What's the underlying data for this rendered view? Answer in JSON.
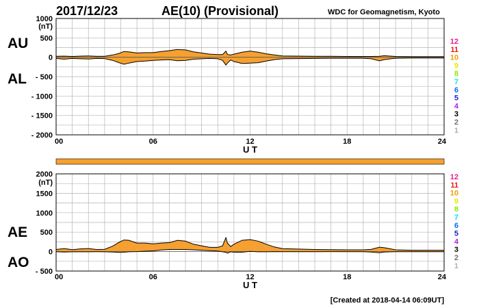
{
  "header": {
    "date": "2017/12/23",
    "title": "AE(10) (Provisional)",
    "source": "WDC for Geomagnetism, Kyoto"
  },
  "footer": {
    "created": "[Created at 2018-04-14 06:09UT]"
  },
  "colors": {
    "fill": "#F5A030",
    "bar": "#F5A030",
    "grid": "#B4B4B4",
    "line": "#000000"
  },
  "chart_data": [
    {
      "type": "area",
      "panel": "AU/AL",
      "labels": {
        "upper": "AU",
        "lower": "AL"
      },
      "unit_label": "(nT)",
      "xlabel": "U T",
      "xlim": [
        0,
        24
      ],
      "xticks": [
        0,
        6,
        12,
        18,
        24
      ],
      "xtick_labels": [
        "00",
        "06",
        "12",
        "18",
        "24"
      ],
      "ylim": [
        -2000,
        1000
      ],
      "yticks": [
        1000,
        500,
        0,
        -500,
        -1000,
        -1500,
        -2000
      ],
      "ytick_labels": [
        "1000",
        "500",
        "0",
        "- 500",
        "- 1000",
        "- 1500",
        "- 2000"
      ],
      "grid": true,
      "station_counts": [
        "12",
        "11",
        "10",
        "9",
        "8",
        "7",
        "6",
        "5",
        "4",
        "3",
        "2",
        "1"
      ],
      "station_colors": [
        "#E8208C",
        "#E81818",
        "#F0A000",
        "#E8E800",
        "#90E800",
        "#00E8E8",
        "#0070F0",
        "#2020D0",
        "#B020E0",
        "#000000",
        "#707070",
        "#B0B0B0"
      ],
      "x": [
        0,
        0.5,
        1,
        1.5,
        2,
        2.5,
        3,
        3.5,
        3.9,
        4.2,
        4.5,
        5,
        5.5,
        6,
        6.5,
        7,
        7.5,
        8,
        8.5,
        9,
        9.5,
        10,
        10.3,
        10.5,
        10.6,
        10.8,
        11,
        11.5,
        12,
        12.5,
        13,
        13.5,
        14,
        15,
        16,
        17,
        18,
        19,
        19.5,
        20,
        20.3,
        20.7,
        21,
        22,
        23,
        24
      ],
      "series": [
        {
          "name": "AU",
          "values": [
            25,
            30,
            20,
            30,
            35,
            25,
            25,
            60,
            100,
            150,
            140,
            110,
            120,
            120,
            150,
            170,
            200,
            190,
            140,
            110,
            80,
            70,
            70,
            160,
            70,
            60,
            80,
            130,
            160,
            130,
            90,
            60,
            35,
            30,
            25,
            25,
            20,
            20,
            20,
            25,
            40,
            30,
            20,
            15,
            15,
            15
          ]
        },
        {
          "name": "AL",
          "values": [
            -30,
            -50,
            -30,
            -40,
            -45,
            -30,
            -35,
            -80,
            -140,
            -180,
            -150,
            -110,
            -100,
            -80,
            -70,
            -60,
            -90,
            -80,
            -50,
            -40,
            -30,
            -40,
            -80,
            -200,
            -150,
            -70,
            -110,
            -160,
            -150,
            -140,
            -100,
            -60,
            -40,
            -35,
            -30,
            -25,
            -25,
            -25,
            -40,
            -90,
            -60,
            -40,
            -25,
            -20,
            -20,
            -20
          ]
        }
      ]
    },
    {
      "type": "area",
      "panel": "AE/AO",
      "labels": {
        "upper": "AE",
        "lower": "AO"
      },
      "unit_label": "(nT)",
      "xlabel": "U T",
      "xlim": [
        0,
        24
      ],
      "xticks": [
        0,
        6,
        12,
        18,
        24
      ],
      "xtick_labels": [
        "00",
        "06",
        "12",
        "18",
        "24"
      ],
      "ylim": [
        -500,
        2000
      ],
      "yticks": [
        2000,
        1500,
        1000,
        500,
        0,
        -500
      ],
      "ytick_labels": [
        "2000",
        "1500",
        "1000",
        "500",
        "0",
        "- 500"
      ],
      "grid": true,
      "station_counts": [
        "12",
        "11",
        "10",
        "9",
        "8",
        "7",
        "6",
        "5",
        "4",
        "3",
        "2",
        "1"
      ],
      "station_colors": [
        "#E8208C",
        "#E81818",
        "#F0A000",
        "#E8E800",
        "#90E800",
        "#00E8E8",
        "#0070F0",
        "#2020D0",
        "#B020E0",
        "#000000",
        "#707070",
        "#B0B0B0"
      ],
      "x": [
        0,
        0.5,
        1,
        1.5,
        2,
        2.5,
        3,
        3.5,
        3.9,
        4.2,
        4.5,
        5,
        5.5,
        6,
        6.5,
        7,
        7.5,
        8,
        8.5,
        9,
        9.5,
        10,
        10.3,
        10.5,
        10.6,
        10.8,
        11,
        11.5,
        12,
        12.5,
        13,
        13.5,
        14,
        15,
        16,
        17,
        18,
        19,
        19.5,
        20,
        20.3,
        20.7,
        21,
        22,
        23,
        24
      ],
      "series": [
        {
          "name": "AE",
          "values": [
            55,
            80,
            50,
            70,
            80,
            55,
            60,
            140,
            240,
            300,
            290,
            220,
            220,
            200,
            220,
            230,
            290,
            270,
            190,
            150,
            110,
            110,
            150,
            360,
            220,
            130,
            190,
            290,
            310,
            270,
            190,
            120,
            75,
            65,
            55,
            50,
            45,
            45,
            60,
            115,
            100,
            70,
            45,
            35,
            35,
            35
          ]
        },
        {
          "name": "AO",
          "values": [
            -3,
            -10,
            -5,
            -5,
            -5,
            -3,
            -5,
            -10,
            -20,
            -15,
            -5,
            0,
            10,
            20,
            40,
            55,
            55,
            55,
            45,
            35,
            25,
            15,
            -5,
            -20,
            -40,
            -5,
            -15,
            -15,
            5,
            -5,
            -5,
            0,
            -3,
            -3,
            -3,
            0,
            -3,
            -3,
            -10,
            -30,
            -10,
            -5,
            -3,
            -3,
            -3,
            -3
          ]
        }
      ]
    }
  ],
  "divider_bar": {
    "coverage_fraction": 1.0
  }
}
